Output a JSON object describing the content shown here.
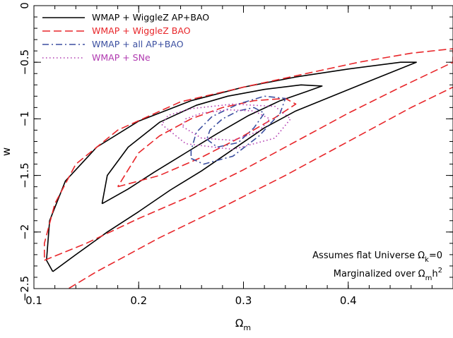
{
  "chart_data": {
    "type": "contour",
    "xlabel": "Ω",
    "xlabel_sub": "m",
    "ylabel": "w",
    "xlim": [
      0.1,
      0.5
    ],
    "ylim": [
      -2.5,
      0
    ],
    "x_ticks": [
      0.1,
      0.2,
      0.3,
      0.4
    ],
    "x_tick_labels": [
      "0.1",
      "0.2",
      "0.3",
      "0.4"
    ],
    "y_ticks": [
      0,
      -0.5,
      -1,
      -1.5,
      -2,
      -2.5
    ],
    "y_tick_labels": [
      "0",
      "−0.5",
      "−1",
      "−1.5",
      "−2",
      "−2.5"
    ],
    "series": [
      {
        "name": "WMAP + WiggleZ AP+BAO",
        "color": "#000000",
        "dash": "solid",
        "contours": [
          [
            [
              0.165,
              -1.75
            ],
            [
              0.19,
              -1.62
            ],
            [
              0.215,
              -1.47
            ],
            [
              0.245,
              -1.3
            ],
            [
              0.275,
              -1.13
            ],
            [
              0.305,
              -0.97
            ],
            [
              0.335,
              -0.84
            ],
            [
              0.36,
              -0.76
            ],
            [
              0.375,
              -0.71
            ],
            [
              0.355,
              -0.7
            ],
            [
              0.32,
              -0.74
            ],
            [
              0.285,
              -0.8
            ],
            [
              0.255,
              -0.88
            ],
            [
              0.22,
              -1.03
            ],
            [
              0.19,
              -1.25
            ],
            [
              0.17,
              -1.5
            ],
            [
              0.165,
              -1.75
            ]
          ],
          [
            [
              0.118,
              -2.35
            ],
            [
              0.14,
              -2.2
            ],
            [
              0.17,
              -2.0
            ],
            [
              0.2,
              -1.82
            ],
            [
              0.23,
              -1.63
            ],
            [
              0.26,
              -1.46
            ],
            [
              0.29,
              -1.27
            ],
            [
              0.32,
              -1.08
            ],
            [
              0.35,
              -0.93
            ],
            [
              0.39,
              -0.78
            ],
            [
              0.43,
              -0.63
            ],
            [
              0.465,
              -0.5
            ],
            [
              0.45,
              -0.5
            ],
            [
              0.4,
              -0.56
            ],
            [
              0.35,
              -0.63
            ],
            [
              0.3,
              -0.72
            ],
            [
              0.25,
              -0.84
            ],
            [
              0.2,
              -1.02
            ],
            [
              0.16,
              -1.25
            ],
            [
              0.13,
              -1.55
            ],
            [
              0.115,
              -1.9
            ],
            [
              0.112,
              -2.25
            ],
            [
              0.118,
              -2.35
            ]
          ]
        ]
      },
      {
        "name": "WMAP + WiggleZ BAO",
        "color": "#e8262a",
        "dash": "dashed",
        "contours": [
          [
            [
              0.18,
              -1.6
            ],
            [
              0.22,
              -1.5
            ],
            [
              0.26,
              -1.34
            ],
            [
              0.3,
              -1.15
            ],
            [
              0.33,
              -0.99
            ],
            [
              0.35,
              -0.87
            ],
            [
              0.34,
              -0.82
            ],
            [
              0.31,
              -0.84
            ],
            [
              0.28,
              -0.9
            ],
            [
              0.25,
              -1.0
            ],
            [
              0.22,
              -1.15
            ],
            [
              0.2,
              -1.3
            ],
            [
              0.19,
              -1.45
            ],
            [
              0.18,
              -1.6
            ]
          ],
          [
            [
              0.11,
              -2.25
            ],
            [
              0.15,
              -2.1
            ],
            [
              0.2,
              -1.88
            ],
            [
              0.25,
              -1.68
            ],
            [
              0.3,
              -1.45
            ],
            [
              0.35,
              -1.2
            ],
            [
              0.4,
              -0.95
            ],
            [
              0.45,
              -0.72
            ],
            [
              0.5,
              -0.5
            ],
            [
              0.5,
              -0.38
            ],
            [
              0.46,
              -0.42
            ],
            [
              0.41,
              -0.5
            ],
            [
              0.36,
              -0.6
            ],
            [
              0.3,
              -0.72
            ],
            [
              0.24,
              -0.85
            ],
            [
              0.18,
              -1.1
            ],
            [
              0.14,
              -1.4
            ],
            [
              0.12,
              -1.75
            ],
            [
              0.11,
              -2.1
            ],
            [
              0.11,
              -2.25
            ]
          ],
          [
            [
              0.115,
              -2.6
            ],
            [
              0.16,
              -2.35
            ],
            [
              0.22,
              -2.05
            ],
            [
              0.28,
              -1.78
            ],
            [
              0.34,
              -1.5
            ],
            [
              0.4,
              -1.2
            ],
            [
              0.46,
              -0.9
            ],
            [
              0.5,
              -0.72
            ]
          ]
        ]
      },
      {
        "name": "WMAP + all AP+BAO",
        "color": "#3b4fa0",
        "dash": "dashdot",
        "contours": [
          [
            [
              0.265,
              -1.18
            ],
            [
              0.275,
              -1.25
            ],
            [
              0.295,
              -1.21
            ],
            [
              0.31,
              -1.08
            ],
            [
              0.32,
              -0.95
            ],
            [
              0.31,
              -0.9
            ],
            [
              0.295,
              -0.93
            ],
            [
              0.28,
              -1.0
            ],
            [
              0.268,
              -1.1
            ],
            [
              0.265,
              -1.18
            ]
          ],
          [
            [
              0.25,
              -1.35
            ],
            [
              0.262,
              -1.4
            ],
            [
              0.29,
              -1.33
            ],
            [
              0.315,
              -1.15
            ],
            [
              0.335,
              -0.95
            ],
            [
              0.34,
              -0.82
            ],
            [
              0.32,
              -0.8
            ],
            [
              0.295,
              -0.87
            ],
            [
              0.27,
              -0.98
            ],
            [
              0.255,
              -1.12
            ],
            [
              0.25,
              -1.28
            ],
            [
              0.25,
              -1.35
            ]
          ]
        ]
      },
      {
        "name": "WMAP + SNe",
        "color": "#b03ab0",
        "dash": "dotted",
        "contours": [
          [
            [
              0.242,
              -1.07
            ],
            [
              0.26,
              -1.17
            ],
            [
              0.29,
              -1.19
            ],
            [
              0.315,
              -1.11
            ],
            [
              0.325,
              -1.0
            ],
            [
              0.31,
              -0.93
            ],
            [
              0.285,
              -0.92
            ],
            [
              0.26,
              -0.95
            ],
            [
              0.245,
              -1.0
            ],
            [
              0.242,
              -1.07
            ]
          ],
          [
            [
              0.222,
              -1.05
            ],
            [
              0.245,
              -1.22
            ],
            [
              0.29,
              -1.27
            ],
            [
              0.33,
              -1.17
            ],
            [
              0.345,
              -1.0
            ],
            [
              0.33,
              -0.89
            ],
            [
              0.29,
              -0.87
            ],
            [
              0.25,
              -0.91
            ],
            [
              0.228,
              -0.97
            ],
            [
              0.222,
              -1.05
            ]
          ]
        ]
      }
    ],
    "legend_position": "top-left",
    "annotations": [
      {
        "prefix": "Assumes flat Universe Ω",
        "sub": "k",
        "suffix": "=0"
      },
      {
        "prefix": "Marginalized over Ω",
        "sub": "m",
        "mid": "h",
        "sup": "2"
      }
    ]
  }
}
